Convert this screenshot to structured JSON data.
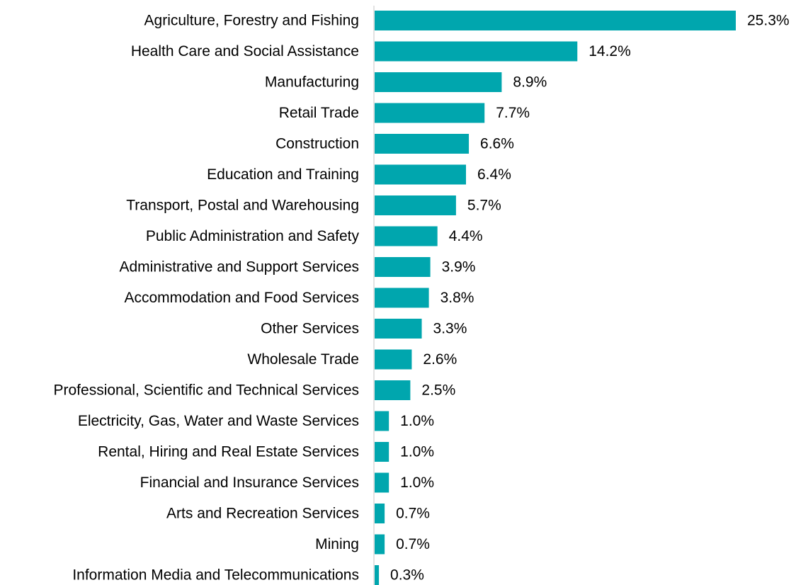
{
  "chart_data": {
    "type": "bar",
    "orientation": "horizontal",
    "categories": [
      "Agriculture, Forestry and Fishing",
      "Health Care and Social Assistance",
      "Manufacturing",
      "Retail Trade",
      "Construction",
      "Education and Training",
      "Transport, Postal and Warehousing",
      "Public Administration and Safety",
      "Administrative and Support Services",
      "Accommodation and Food Services",
      "Other Services",
      "Wholesale Trade",
      "Professional, Scientific and Technical Services",
      "Electricity, Gas, Water and Waste Services",
      "Rental, Hiring and Real Estate Services",
      "Financial and Insurance Services",
      "Arts and Recreation Services",
      "Mining",
      "Information Media and Telecommunications"
    ],
    "values": [
      25.3,
      14.2,
      8.9,
      7.7,
      6.6,
      6.4,
      5.7,
      4.4,
      3.9,
      3.8,
      3.3,
      2.6,
      2.5,
      1.0,
      1.0,
      1.0,
      0.7,
      0.7,
      0.3
    ],
    "value_labels": [
      "25.3%",
      "14.2%",
      "8.9%",
      "7.7%",
      "6.6%",
      "6.4%",
      "5.7%",
      "4.4%",
      "3.9%",
      "3.8%",
      "3.3%",
      "2.6%",
      "2.5%",
      "1.0%",
      "1.0%",
      "1.0%",
      "0.7%",
      "0.7%",
      "0.3%"
    ],
    "xlim": [
      0,
      25.3
    ],
    "grid": false,
    "legend": "none",
    "bar_color": "#00A6AE",
    "axis_color": "#D9D9D9"
  }
}
